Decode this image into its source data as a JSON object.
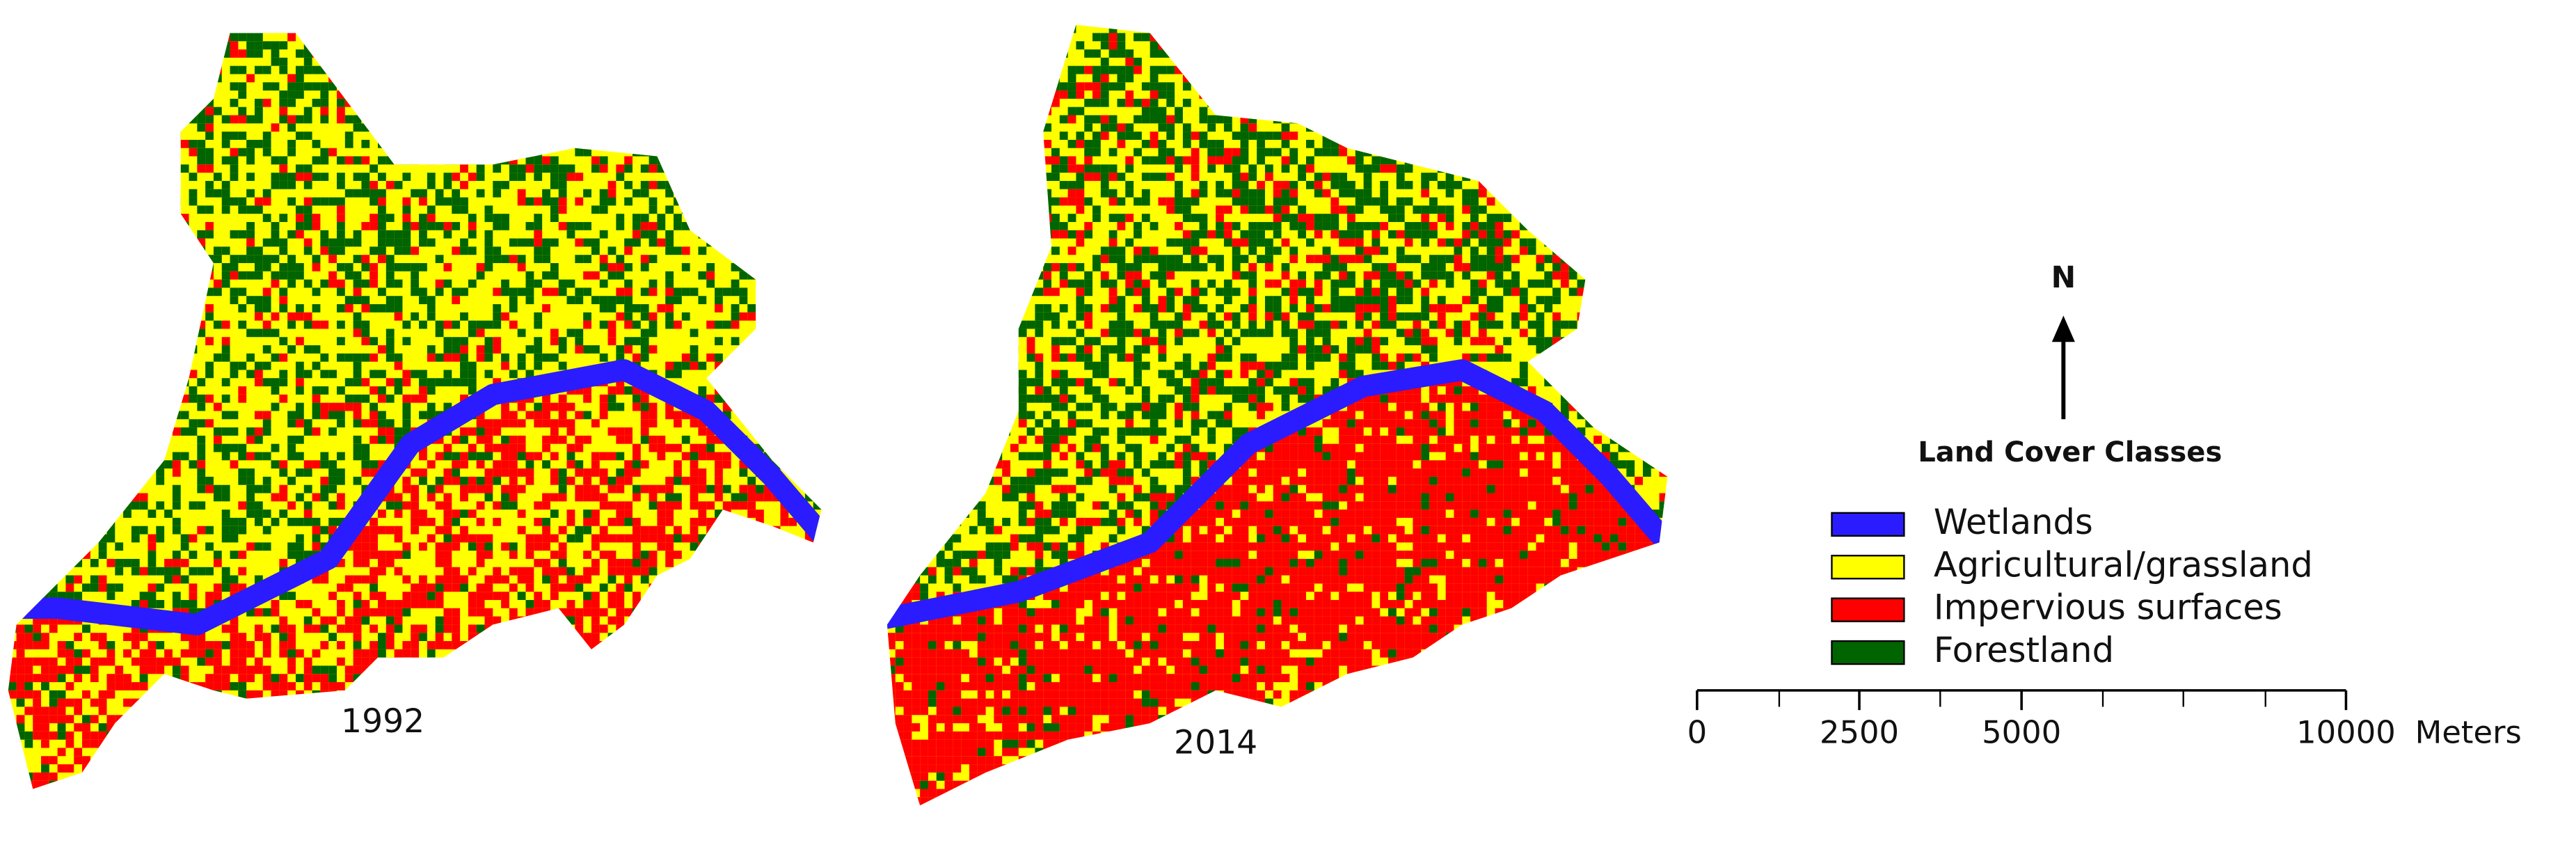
{
  "maps": [
    {
      "label": "1992"
    },
    {
      "label": "2014"
    }
  ],
  "north_arrow": {
    "label": "N"
  },
  "legend": {
    "title": "Land Cover Classes",
    "items": [
      {
        "label": "Wetlands",
        "color": "#2b1cff"
      },
      {
        "label": "Agricultural/grassland",
        "color": "#ffff00"
      },
      {
        "label": "Impervious surfaces",
        "color": "#ff0000"
      },
      {
        "label": "Forestland",
        "color": "#006400"
      }
    ]
  },
  "scale_bar": {
    "ticks": [
      0,
      2500,
      5000,
      10000
    ],
    "unit": "Meters"
  }
}
